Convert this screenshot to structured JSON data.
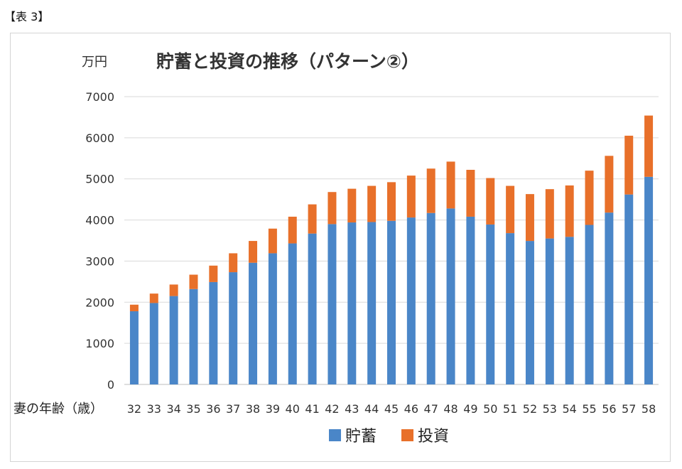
{
  "caption": "【表 3】",
  "chart_data": {
    "type": "bar",
    "stacked": true,
    "title": "貯蓄と投資の推移（パターン②）",
    "ylabel": "万円",
    "xlabel": "妻の年齢（歳）",
    "ylim": [
      0,
      7000
    ],
    "yticks": [
      0,
      1000,
      2000,
      3000,
      4000,
      5000,
      6000,
      7000
    ],
    "grid": true,
    "legend_position": "bottom",
    "categories": [
      "32",
      "33",
      "34",
      "35",
      "36",
      "37",
      "38",
      "39",
      "40",
      "41",
      "42",
      "43",
      "44",
      "45",
      "46",
      "47",
      "48",
      "49",
      "50",
      "51",
      "52",
      "53",
      "54",
      "55",
      "56",
      "57",
      "58"
    ],
    "series": [
      {
        "name": "貯蓄",
        "color": "#4a86c8",
        "values": [
          1780,
          1980,
          2150,
          2320,
          2490,
          2730,
          2960,
          3190,
          3430,
          3670,
          3900,
          3940,
          3950,
          3980,
          4060,
          4170,
          4280,
          4080,
          3890,
          3680,
          3490,
          3550,
          3590,
          3880,
          4180,
          4620,
          5050
        ]
      },
      {
        "name": "投資",
        "color": "#e8702a",
        "values": [
          160,
          230,
          280,
          350,
          400,
          460,
          530,
          600,
          650,
          710,
          780,
          820,
          880,
          940,
          1020,
          1080,
          1140,
          1140,
          1130,
          1150,
          1140,
          1200,
          1250,
          1320,
          1380,
          1430,
          1490
        ]
      }
    ]
  }
}
